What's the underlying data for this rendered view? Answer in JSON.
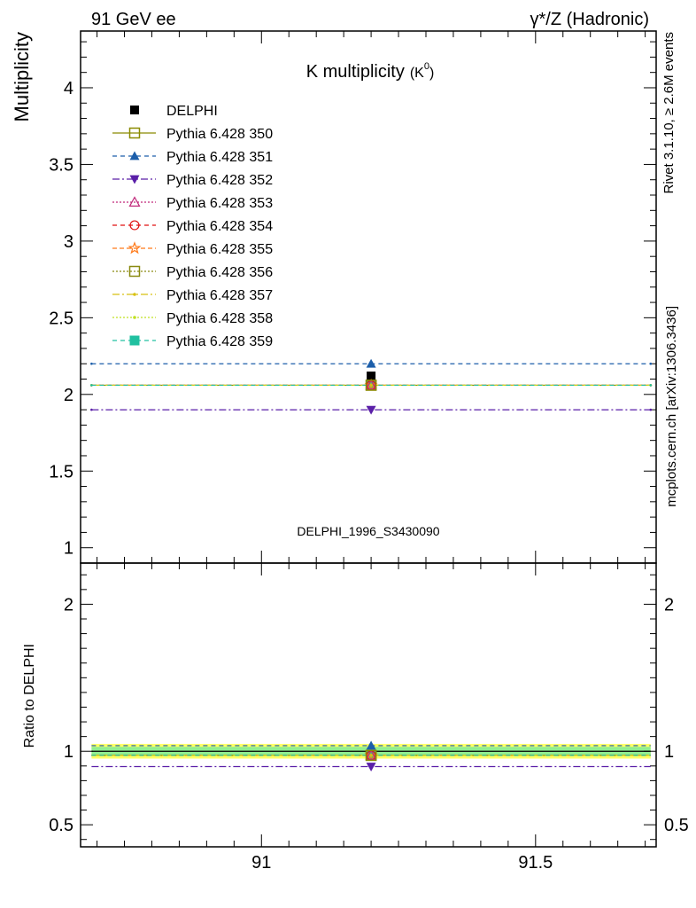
{
  "header": {
    "left": "91 GeV ee",
    "right": "γ*/Z (Hadronic)"
  },
  "side": {
    "rivet": "Rivet 3.1.10, ≥ 2.6M events",
    "mcplots": "mcplots.cern.ch [arXiv:1306.3436]"
  },
  "chart_data": [
    {
      "type": "scatter",
      "title": "K multiplicity",
      "title_sub": "(K",
      "title_sup": "0",
      "title_end": ")",
      "watermark": "DELPHI_1996_S3430090",
      "ylabel": "Multiplicity",
      "xlim": [
        90.67,
        91.72
      ],
      "ylim": [
        0.9,
        4.37
      ],
      "yticks": [
        1,
        1.5,
        2,
        2.5,
        3,
        3.5,
        4
      ],
      "ytick_labels": [
        "1",
        "1.5",
        "2",
        "2.5",
        "3",
        "3.5",
        "4"
      ],
      "x_edges": [
        90.69,
        91.71
      ],
      "x_center": 91.2,
      "legend_position": "top-left",
      "data": {
        "name": "DELPHI",
        "x": 91.2,
        "y": 2.12,
        "color": "#000000"
      },
      "series": [
        {
          "name": "Pythia 6.428 350",
          "y": 2.06,
          "color": "#8b8b00",
          "dash": "",
          "marker": "open-square"
        },
        {
          "name": "Pythia 6.428 351",
          "y": 2.2,
          "color": "#1c5eaa",
          "dash": "5,4",
          "marker": "triangle-up"
        },
        {
          "name": "Pythia 6.428 352",
          "y": 1.9,
          "color": "#5a1fa8",
          "dash": "8,3,2,3",
          "marker": "triangle-down"
        },
        {
          "name": "Pythia 6.428 353",
          "y": 2.06,
          "color": "#c0287a",
          "dash": "2,2",
          "marker": "open-triangle"
        },
        {
          "name": "Pythia 6.428 354",
          "y": 2.06,
          "color": "#e01010",
          "dash": "5,4",
          "marker": "open-circle"
        },
        {
          "name": "Pythia 6.428 355",
          "y": 2.06,
          "color": "#ff7a1a",
          "dash": "5,3",
          "marker": "open-star"
        },
        {
          "name": "Pythia 6.428 356",
          "y": 2.06,
          "color": "#8a8a10",
          "dash": "2,2",
          "marker": "open-square"
        },
        {
          "name": "Pythia 6.428 357",
          "y": 2.06,
          "color": "#d8c010",
          "dash": "8,3,2,3",
          "marker": "dot"
        },
        {
          "name": "Pythia 6.428 358",
          "y": 2.06,
          "color": "#c0e020",
          "dash": "2,2",
          "marker": "dot"
        },
        {
          "name": "Pythia 6.428 359",
          "y": 2.06,
          "color": "#20c0a0",
          "dash": "5,4",
          "marker": "filled-square"
        }
      ]
    },
    {
      "type": "scatter",
      "ylabel": "Ratio to DELPHI",
      "xlabel": "",
      "xlim": [
        90.67,
        91.72
      ],
      "ylim": [
        0.35,
        2.28
      ],
      "yticks": [
        0.5,
        1,
        2
      ],
      "ytick_labels": [
        "0.5",
        "1",
        "2"
      ],
      "xticks": [
        91,
        91.5
      ],
      "xtick_labels": [
        "91",
        "91.5"
      ],
      "band_inner": [
        0.97,
        1.03
      ],
      "band_outer": [
        0.95,
        1.05
      ],
      "band_inner_color": "#90ee90",
      "band_outer_color": "#ffff66",
      "ratios": [
        0.972,
        1.038,
        0.896,
        0.972,
        0.972,
        0.972,
        0.972,
        0.972,
        0.972,
        0.972
      ]
    }
  ]
}
